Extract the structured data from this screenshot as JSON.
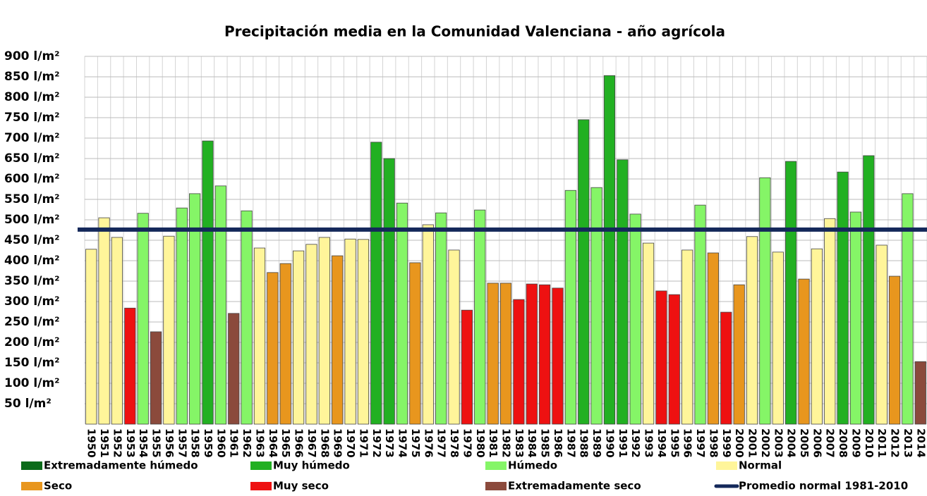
{
  "chart_data": {
    "type": "bar",
    "title": "Precipitación media en la Comunidad Valenciana - año agrícola",
    "categories": [
      "1950",
      "1951",
      "1952",
      "1953",
      "1954",
      "1955",
      "1956",
      "1957",
      "1958",
      "1959",
      "1960",
      "1961",
      "1962",
      "1963",
      "1964",
      "1965",
      "1966",
      "1967",
      "1968",
      "1969",
      "1970",
      "1971",
      "1972",
      "1973",
      "1974",
      "1975",
      "1976",
      "1977",
      "1978",
      "1979",
      "1980",
      "1981",
      "1982",
      "1983",
      "1984",
      "1985",
      "1986",
      "1987",
      "1988",
      "1989",
      "1990",
      "1991",
      "1992",
      "1993",
      "1994",
      "1995",
      "1996",
      "1997",
      "1998",
      "1999",
      "2000",
      "2001",
      "2002",
      "2003",
      "2004",
      "2005",
      "2006",
      "2007",
      "2008",
      "2009",
      "2010",
      "2011",
      "2012",
      "2013",
      "2014"
    ],
    "series": [
      {
        "name": "Extremadamente húmedo",
        "color": "#0b6b1a",
        "values": [
          null,
          null,
          null,
          null,
          null,
          null,
          null,
          null,
          null,
          null,
          null,
          null,
          null,
          null,
          null,
          null,
          null,
          null,
          null,
          null,
          null,
          null,
          null,
          null,
          null,
          null,
          null,
          null,
          null,
          null,
          null,
          null,
          null,
          null,
          null,
          null,
          null,
          null,
          null,
          null,
          null,
          null,
          null,
          null,
          null,
          null,
          null,
          null,
          null,
          null,
          null,
          null,
          null,
          null,
          null,
          null,
          null,
          null,
          null,
          null,
          null,
          null,
          null,
          null,
          null
        ]
      },
      {
        "name": "Muy húmedo",
        "color": "#22b022",
        "values": [
          null,
          null,
          null,
          null,
          null,
          null,
          null,
          null,
          null,
          693,
          null,
          null,
          null,
          null,
          null,
          null,
          null,
          null,
          null,
          null,
          null,
          null,
          690,
          650,
          null,
          null,
          null,
          null,
          null,
          null,
          null,
          null,
          null,
          null,
          null,
          null,
          null,
          null,
          745,
          null,
          853,
          647,
          null,
          null,
          null,
          null,
          null,
          null,
          null,
          null,
          null,
          null,
          null,
          null,
          643,
          null,
          null,
          null,
          617,
          null,
          657,
          null,
          null,
          null,
          null
        ]
      },
      {
        "name": "Húmedo",
        "color": "#85f567",
        "values": [
          null,
          null,
          null,
          null,
          516,
          null,
          null,
          529,
          564,
          null,
          583,
          null,
          522,
          null,
          null,
          null,
          null,
          null,
          null,
          null,
          null,
          null,
          null,
          null,
          541,
          null,
          null,
          517,
          null,
          null,
          524,
          null,
          null,
          null,
          null,
          null,
          null,
          572,
          null,
          579,
          null,
          null,
          514,
          null,
          null,
          null,
          null,
          536,
          null,
          null,
          null,
          null,
          603,
          null,
          null,
          null,
          null,
          null,
          null,
          519,
          null,
          null,
          null,
          564,
          null
        ]
      },
      {
        "name": "Normal",
        "color": "#fff59a",
        "values": [
          428,
          505,
          457,
          null,
          null,
          null,
          460,
          null,
          null,
          null,
          null,
          null,
          null,
          431,
          null,
          null,
          424,
          440,
          457,
          null,
          453,
          452,
          null,
          null,
          null,
          null,
          488,
          null,
          426,
          null,
          null,
          null,
          null,
          null,
          null,
          null,
          null,
          null,
          null,
          null,
          null,
          null,
          null,
          443,
          null,
          null,
          426,
          null,
          null,
          null,
          null,
          459,
          null,
          421,
          null,
          null,
          429,
          503,
          null,
          null,
          null,
          438,
          null,
          null,
          null
        ]
      },
      {
        "name": "Seco",
        "color": "#e8961e",
        "values": [
          null,
          null,
          null,
          null,
          null,
          null,
          null,
          null,
          null,
          null,
          null,
          null,
          null,
          null,
          371,
          393,
          null,
          null,
          null,
          412,
          null,
          null,
          null,
          null,
          null,
          395,
          null,
          null,
          null,
          null,
          null,
          345,
          345,
          null,
          null,
          null,
          null,
          null,
          null,
          null,
          null,
          null,
          null,
          null,
          null,
          null,
          null,
          null,
          419,
          null,
          341,
          null,
          null,
          null,
          null,
          355,
          null,
          null,
          null,
          null,
          null,
          null,
          362,
          null,
          null
        ]
      },
      {
        "name": "Muy seco",
        "color": "#ee1111",
        "values": [
          null,
          null,
          null,
          284,
          null,
          null,
          null,
          null,
          null,
          null,
          null,
          null,
          null,
          null,
          null,
          null,
          null,
          null,
          null,
          null,
          null,
          null,
          null,
          null,
          null,
          null,
          null,
          null,
          null,
          279,
          null,
          null,
          null,
          305,
          343,
          341,
          333,
          null,
          null,
          null,
          null,
          null,
          null,
          null,
          326,
          317,
          null,
          null,
          null,
          274,
          null,
          null,
          null,
          null,
          null,
          null,
          null,
          null,
          null,
          null,
          null,
          null,
          null,
          null,
          null
        ]
      },
      {
        "name": "Extremadamente seco",
        "color": "#8b4a3c",
        "values": [
          null,
          null,
          null,
          null,
          null,
          226,
          null,
          null,
          null,
          null,
          null,
          271,
          null,
          null,
          null,
          null,
          null,
          null,
          null,
          null,
          null,
          null,
          null,
          null,
          null,
          null,
          null,
          null,
          null,
          null,
          null,
          null,
          null,
          null,
          null,
          null,
          null,
          null,
          null,
          null,
          null,
          null,
          null,
          null,
          null,
          null,
          null,
          null,
          null,
          null,
          null,
          null,
          null,
          null,
          null,
          null,
          null,
          null,
          null,
          null,
          null,
          null,
          null,
          null,
          153
        ]
      }
    ],
    "reference_line": {
      "name": "Promedio normal 1981-2010",
      "color": "#14285a",
      "value": 476
    },
    "ylim": [
      0,
      900
    ],
    "yticks": [
      {
        "value": 50,
        "label": "50 l/m²"
      },
      {
        "value": 100,
        "label": "100 l/m²"
      },
      {
        "value": 150,
        "label": "150 l/m²"
      },
      {
        "value": 200,
        "label": "200 l/m²"
      },
      {
        "value": 250,
        "label": "250 l/m²"
      },
      {
        "value": 300,
        "label": "300 l/m²"
      },
      {
        "value": 350,
        "label": "350 l/m²"
      },
      {
        "value": 400,
        "label": "400 l/m²"
      },
      {
        "value": 450,
        "label": "450 l/m²"
      },
      {
        "value": 500,
        "label": "500 l/m²"
      },
      {
        "value": 550,
        "label": "550 l/m²"
      },
      {
        "value": 600,
        "label": "600 l/m²"
      },
      {
        "value": 650,
        "label": "650 l/m²"
      },
      {
        "value": 700,
        "label": "700 l/m²"
      },
      {
        "value": 750,
        "label": "750 l/m²"
      },
      {
        "value": 800,
        "label": "800 l/m²"
      },
      {
        "value": 850,
        "label": "850 l/m²"
      },
      {
        "value": 900,
        "label": "900 l/m²"
      }
    ],
    "grid": true
  }
}
